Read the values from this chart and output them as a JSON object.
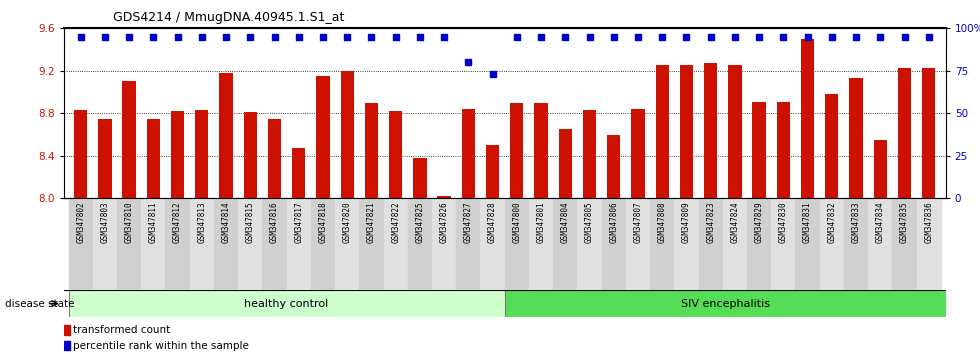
{
  "title": "GDS4214 / MmugDNA.40945.1.S1_at",
  "samples": [
    "GSM347802",
    "GSM347803",
    "GSM347810",
    "GSM347811",
    "GSM347812",
    "GSM347813",
    "GSM347814",
    "GSM347815",
    "GSM347816",
    "GSM347817",
    "GSM347818",
    "GSM347820",
    "GSM347821",
    "GSM347822",
    "GSM347825",
    "GSM347826",
    "GSM347827",
    "GSM347828",
    "GSM347800",
    "GSM347801",
    "GSM347804",
    "GSM347805",
    "GSM347806",
    "GSM347807",
    "GSM347808",
    "GSM347809",
    "GSM347823",
    "GSM347824",
    "GSM347829",
    "GSM347830",
    "GSM347831",
    "GSM347832",
    "GSM347833",
    "GSM347834",
    "GSM347835",
    "GSM347836"
  ],
  "bar_values": [
    8.83,
    8.75,
    9.1,
    8.75,
    8.82,
    8.83,
    9.18,
    8.81,
    8.75,
    8.47,
    9.15,
    9.2,
    8.9,
    8.82,
    8.38,
    8.02,
    8.84,
    8.5,
    8.9,
    8.9,
    8.65,
    8.83,
    8.6,
    8.84,
    9.25,
    9.25,
    9.27,
    9.25,
    8.91,
    8.91,
    9.5,
    8.98,
    9.13,
    8.55,
    9.23,
    9.23
  ],
  "percentile_values": [
    95,
    95,
    95,
    95,
    95,
    95,
    95,
    95,
    95,
    95,
    95,
    95,
    95,
    95,
    95,
    95,
    80,
    73,
    95,
    95,
    95,
    95,
    95,
    95,
    95,
    95,
    95,
    95,
    95,
    95,
    95,
    95,
    95,
    95,
    95,
    95
  ],
  "ylim_left": [
    8.0,
    9.6
  ],
  "ylim_right": [
    0,
    100
  ],
  "bar_color": "#cc1100",
  "dot_color": "#0000cc",
  "healthy_color": "#ccffcc",
  "siv_color": "#55dd55",
  "healthy_label": "healthy control",
  "siv_label": "SIV encephalitis",
  "n_healthy": 18,
  "legend_tc": "transformed count",
  "legend_pr": "percentile rank within the sample",
  "disease_state_label": "disease state",
  "yticks_left": [
    8.0,
    8.4,
    8.8,
    9.2,
    9.6
  ],
  "yticks_right": [
    0,
    25,
    50,
    75,
    100
  ],
  "ytick_labels_right": [
    "0",
    "25",
    "50",
    "75",
    "100%"
  ]
}
